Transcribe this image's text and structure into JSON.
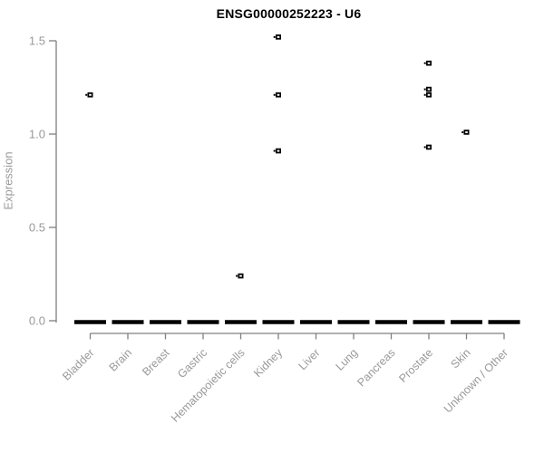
{
  "chart_data": {
    "type": "scatter",
    "subtype": "boxplot-with-outliers",
    "title": "ENSG00000252223 - U6",
    "xlabel": "",
    "ylabel": "Expression",
    "ylim": [
      0,
      1.55
    ],
    "yticks": [
      "0.0",
      "0.5",
      "1.0",
      "1.5"
    ],
    "ytick_values": [
      0.0,
      0.5,
      1.0,
      1.5
    ],
    "grid": "off",
    "legend": "none",
    "categories": [
      "Bladder",
      "Brain",
      "Breast",
      "Gastric",
      "Hematopoietic cells",
      "Kidney",
      "Liver",
      "Lung",
      "Pancreas",
      "Prostate",
      "Skin",
      "Unknown / Other"
    ],
    "series": [
      {
        "category": "Bladder",
        "box_value": 0,
        "outliers": [
          1.21
        ]
      },
      {
        "category": "Brain",
        "box_value": 0,
        "outliers": []
      },
      {
        "category": "Breast",
        "box_value": 0,
        "outliers": []
      },
      {
        "category": "Gastric",
        "box_value": 0,
        "outliers": []
      },
      {
        "category": "Hematopoietic cells",
        "box_value": 0,
        "outliers": [
          0.24
        ]
      },
      {
        "category": "Kidney",
        "box_value": 0,
        "outliers": [
          1.52,
          1.21,
          0.91
        ]
      },
      {
        "category": "Liver",
        "box_value": 0,
        "outliers": []
      },
      {
        "category": "Lung",
        "box_value": 0,
        "outliers": []
      },
      {
        "category": "Pancreas",
        "box_value": 0,
        "outliers": []
      },
      {
        "category": "Prostate",
        "box_value": 0,
        "outliers": [
          1.38,
          1.24,
          1.21,
          0.93
        ]
      },
      {
        "category": "Skin",
        "box_value": 0,
        "outliers": [
          1.01
        ]
      },
      {
        "category": "Unknown / Other",
        "box_value": 0,
        "outliers": []
      }
    ],
    "colors": {
      "box": "#000000",
      "point": "#000000",
      "axis": "#808080",
      "tick_label": "#999999",
      "title": "#000000",
      "background": "#ffffff"
    }
  }
}
